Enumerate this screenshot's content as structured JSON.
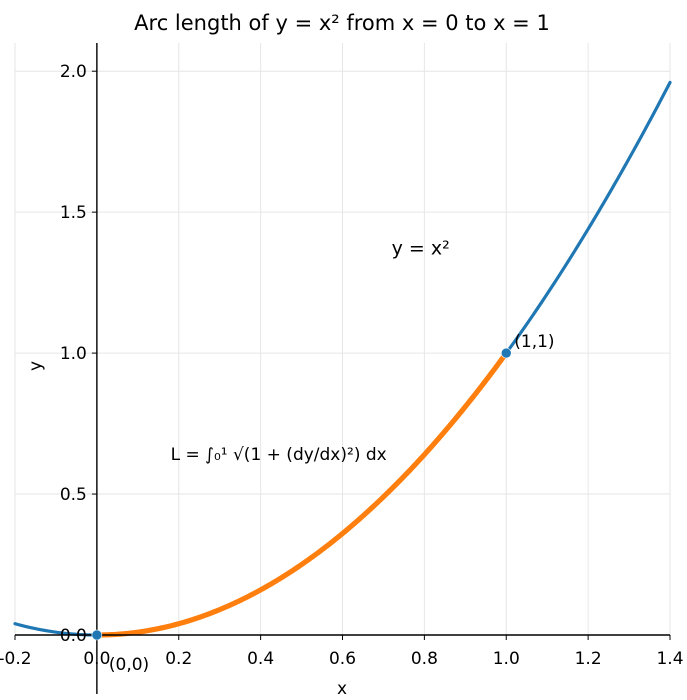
{
  "chart_data": {
    "type": "line",
    "title": "Arc length of  y = x²  from x = 0 to x = 1",
    "xlabel": "x",
    "ylabel": "y",
    "xlim": [
      -0.2,
      1.4
    ],
    "ylim": [
      0.0,
      2.1
    ],
    "x_ticks": [
      -0.2,
      0.0,
      0.2,
      0.4,
      0.6,
      0.8,
      1.0,
      1.2,
      1.4
    ],
    "x_tick_labels": [
      "-0.2",
      "0.0",
      "0.2",
      "0.4",
      "0.6",
      "0.8",
      "1.0",
      "1.2",
      "1.4"
    ],
    "y_ticks": [
      0.0,
      0.5,
      1.0,
      1.5,
      2.0
    ],
    "y_tick_labels": [
      "0.0",
      "0.5",
      "1.0",
      "1.5",
      "2.0"
    ],
    "grid": true,
    "series": [
      {
        "function": "x^2",
        "x_range": [
          -0.2,
          1.4
        ],
        "color": "#1f77b4"
      },
      {
        "function": "x^2",
        "x_range": [
          0.0,
          1.0
        ],
        "color": "#ff7f0e"
      }
    ],
    "points": [
      {
        "x": 0.0,
        "y": 0.0,
        "label": "(0,0)",
        "color": "#1f77b4"
      },
      {
        "x": 1.0,
        "y": 1.0,
        "label": "(1,1)",
        "color": "#1f77b4"
      }
    ],
    "annotations": [
      {
        "text": "y = x²",
        "x": 0.72,
        "y": 1.35
      },
      {
        "text": "L = ∫₀¹ √(1 + (dy/dx)²) dx",
        "x": 0.18,
        "y": 0.62
      }
    ]
  }
}
